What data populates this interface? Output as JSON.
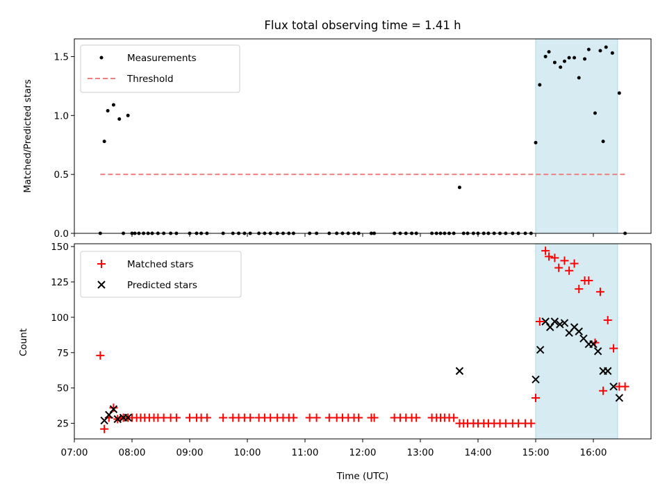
{
  "chart_data": [
    {
      "type": "scatter",
      "title": "Flux total observing time = 1.41 h",
      "xlabel": "",
      "ylabel": "Matched/Predicted stars",
      "xlim": [
        7.0,
        17.0
      ],
      "ylim": [
        0.0,
        1.65
      ],
      "yticks": [
        0.0,
        0.5,
        1.0,
        1.5
      ],
      "yticklabels": [
        "0.0",
        "0.5",
        "1.0",
        "1.5"
      ],
      "shaded_span": [
        15.0,
        16.42
      ],
      "legend": {
        "location": "top-left",
        "entries": [
          "Measurements",
          "Threshold"
        ]
      },
      "threshold": {
        "name": "Threshold",
        "value": 0.5,
        "x": [
          7.45,
          16.55
        ],
        "color": "#f08080"
      },
      "series": [
        {
          "name": "Measurements",
          "marker": "dot",
          "color": "#000000",
          "x": [
            7.45,
            7.52,
            7.58,
            7.68,
            7.78,
            7.93,
            7.85,
            8.0,
            8.05,
            8.12,
            8.2,
            8.28,
            8.35,
            8.45,
            8.55,
            8.67,
            8.77,
            9.0,
            9.12,
            9.2,
            9.3,
            9.58,
            9.75,
            9.85,
            9.95,
            10.05,
            10.2,
            10.3,
            10.4,
            10.52,
            10.62,
            10.72,
            10.8,
            11.08,
            11.2,
            11.42,
            11.55,
            11.65,
            11.75,
            11.85,
            11.93,
            12.15,
            12.2,
            12.55,
            12.65,
            12.75,
            12.85,
            12.93,
            13.2,
            13.28,
            13.35,
            13.42,
            13.5,
            13.58,
            13.68,
            13.75,
            13.82,
            13.92,
            14.0,
            14.1,
            14.18,
            14.28,
            14.38,
            14.48,
            14.6,
            14.7,
            14.82,
            14.92,
            15.0,
            15.07,
            15.17,
            15.23,
            15.33,
            15.43,
            15.5,
            15.58,
            15.67,
            15.75,
            15.85,
            15.92,
            16.03,
            16.12,
            16.17,
            16.22,
            16.33,
            16.45,
            16.55
          ],
          "y": [
            0.0,
            0.78,
            1.04,
            1.09,
            0.97,
            1.0,
            0.0,
            0.0,
            0.0,
            0.0,
            0.0,
            0.0,
            0.0,
            0.0,
            0.0,
            0.0,
            0.0,
            0.0,
            0.0,
            0.0,
            0.0,
            0.0,
            0.0,
            0.0,
            0.0,
            0.0,
            0.0,
            0.0,
            0.0,
            0.0,
            0.0,
            0.0,
            0.0,
            0.0,
            0.0,
            0.0,
            0.0,
            0.0,
            0.0,
            0.0,
            0.0,
            0.0,
            0.0,
            0.0,
            0.0,
            0.0,
            0.0,
            0.0,
            0.0,
            0.0,
            0.0,
            0.0,
            0.0,
            0.0,
            0.39,
            0.0,
            0.0,
            0.0,
            0.0,
            0.0,
            0.0,
            0.0,
            0.0,
            0.0,
            0.0,
            0.0,
            0.0,
            0.0,
            0.77,
            1.26,
            1.5,
            1.54,
            1.45,
            1.41,
            1.46,
            1.49,
            1.49,
            1.32,
            1.48,
            1.56,
            1.02,
            1.55,
            0.78,
            1.58,
            1.53,
            1.19,
            0.0
          ]
        }
      ]
    },
    {
      "type": "scatter",
      "title": "",
      "xlabel": "Time (UTC)",
      "ylabel": "Count",
      "xlim": [
        7.0,
        17.0
      ],
      "ylim": [
        14.0,
        152.0
      ],
      "yticks": [
        25,
        50,
        75,
        100,
        125,
        150
      ],
      "yticklabels": [
        "25",
        "50",
        "75",
        "100",
        "125",
        "150"
      ],
      "xticks": [
        7,
        8,
        9,
        10,
        11,
        12,
        13,
        14,
        15,
        16
      ],
      "xticklabels": [
        "07:00",
        "08:00",
        "09:00",
        "10:00",
        "11:00",
        "12:00",
        "13:00",
        "14:00",
        "15:00",
        "16:00"
      ],
      "shaded_span": [
        15.0,
        16.42
      ],
      "legend": {
        "location": "top-left",
        "entries": [
          "Matched stars",
          "Predicted stars"
        ]
      },
      "series": [
        {
          "name": "Matched stars",
          "marker": "plus",
          "color": "#ff0000",
          "x": [
            7.45,
            7.52,
            7.6,
            7.68,
            7.75,
            7.85,
            7.93,
            8.0,
            8.08,
            8.15,
            8.22,
            8.3,
            8.38,
            8.45,
            8.55,
            8.67,
            8.77,
            9.0,
            9.12,
            9.2,
            9.3,
            9.58,
            9.75,
            9.85,
            9.95,
            10.05,
            10.2,
            10.3,
            10.4,
            10.52,
            10.62,
            10.72,
            10.8,
            11.08,
            11.2,
            11.42,
            11.55,
            11.65,
            11.75,
            11.85,
            11.93,
            12.15,
            12.2,
            12.55,
            12.65,
            12.75,
            12.85,
            12.93,
            13.2,
            13.28,
            13.35,
            13.42,
            13.5,
            13.58,
            13.68,
            13.75,
            13.82,
            13.92,
            14.0,
            14.1,
            14.18,
            14.28,
            14.38,
            14.48,
            14.6,
            14.7,
            14.82,
            14.92,
            15.0,
            15.07,
            15.17,
            15.23,
            15.33,
            15.4,
            15.5,
            15.58,
            15.67,
            15.75,
            15.85,
            15.92,
            16.03,
            16.12,
            16.17,
            16.25,
            16.35,
            16.45,
            16.55
          ],
          "y": [
            73,
            21,
            29,
            36,
            28,
            29,
            29,
            29,
            29,
            29,
            29,
            29,
            29,
            29,
            29,
            29,
            29,
            29,
            29,
            29,
            29,
            29,
            29,
            29,
            29,
            29,
            29,
            29,
            29,
            29,
            29,
            29,
            29,
            29,
            29,
            29,
            29,
            29,
            29,
            29,
            29,
            29,
            29,
            29,
            29,
            29,
            29,
            29,
            29,
            29,
            29,
            29,
            29,
            29,
            25,
            25,
            25,
            25,
            25,
            25,
            25,
            25,
            25,
            25,
            25,
            25,
            25,
            25,
            43,
            97,
            147,
            143,
            142,
            135,
            140,
            133,
            138,
            120,
            126,
            126,
            82,
            118,
            48,
            98,
            78,
            51,
            51
          ]
        },
        {
          "name": "Predicted stars",
          "marker": "x",
          "color": "#000000",
          "x": [
            7.52,
            7.6,
            7.68,
            7.75,
            7.85,
            7.93,
            13.68,
            15.0,
            15.08,
            15.17,
            15.25,
            15.33,
            15.42,
            15.5,
            15.58,
            15.67,
            15.75,
            15.83,
            15.92,
            16.0,
            16.08,
            16.17,
            16.25,
            16.35,
            16.45
          ],
          "y": [
            27,
            31,
            35,
            28,
            29,
            29,
            62,
            56,
            77,
            97,
            93,
            97,
            95,
            96,
            89,
            93,
            90,
            85,
            81,
            81,
            76,
            62,
            62,
            51,
            43
          ]
        }
      ]
    }
  ]
}
